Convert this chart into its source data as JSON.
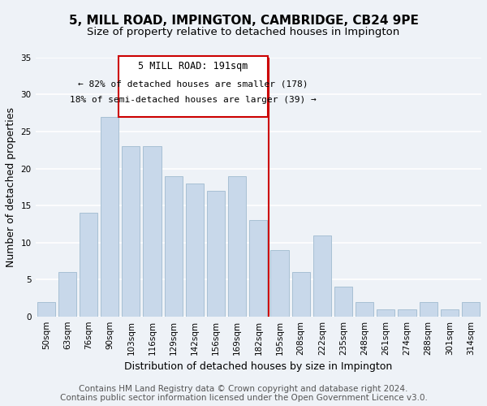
{
  "title": "5, MILL ROAD, IMPINGTON, CAMBRIDGE, CB24 9PE",
  "subtitle": "Size of property relative to detached houses in Impington",
  "xlabel": "Distribution of detached houses by size in Impington",
  "ylabel": "Number of detached properties",
  "bar_labels": [
    "50sqm",
    "63sqm",
    "76sqm",
    "90sqm",
    "103sqm",
    "116sqm",
    "129sqm",
    "142sqm",
    "156sqm",
    "169sqm",
    "182sqm",
    "195sqm",
    "208sqm",
    "222sqm",
    "235sqm",
    "248sqm",
    "261sqm",
    "274sqm",
    "288sqm",
    "301sqm",
    "314sqm"
  ],
  "bar_values": [
    2,
    6,
    14,
    27,
    23,
    23,
    19,
    18,
    17,
    19,
    13,
    9,
    6,
    11,
    4,
    2,
    1,
    1,
    2,
    1,
    2
  ],
  "bar_color": "#c8d8ea",
  "bar_edge_color": "#a8c0d4",
  "highlight_line_color": "#cc0000",
  "annotation_title": "5 MILL ROAD: 191sqm",
  "annotation_line1": "← 82% of detached houses are smaller (178)",
  "annotation_line2": "18% of semi-detached houses are larger (39) →",
  "annotation_box_color": "#ffffff",
  "annotation_box_edge": "#cc0000",
  "ylim": [
    0,
    35
  ],
  "yticks": [
    0,
    5,
    10,
    15,
    20,
    25,
    30,
    35
  ],
  "footer1": "Contains HM Land Registry data © Crown copyright and database right 2024.",
  "footer2": "Contains public sector information licensed under the Open Government Licence v3.0.",
  "background_color": "#eef2f7",
  "grid_color": "#ffffff",
  "title_fontsize": 11,
  "subtitle_fontsize": 9.5,
  "tick_fontsize": 7.5,
  "ylabel_fontsize": 9,
  "xlabel_fontsize": 9,
  "footer_fontsize": 7.5
}
